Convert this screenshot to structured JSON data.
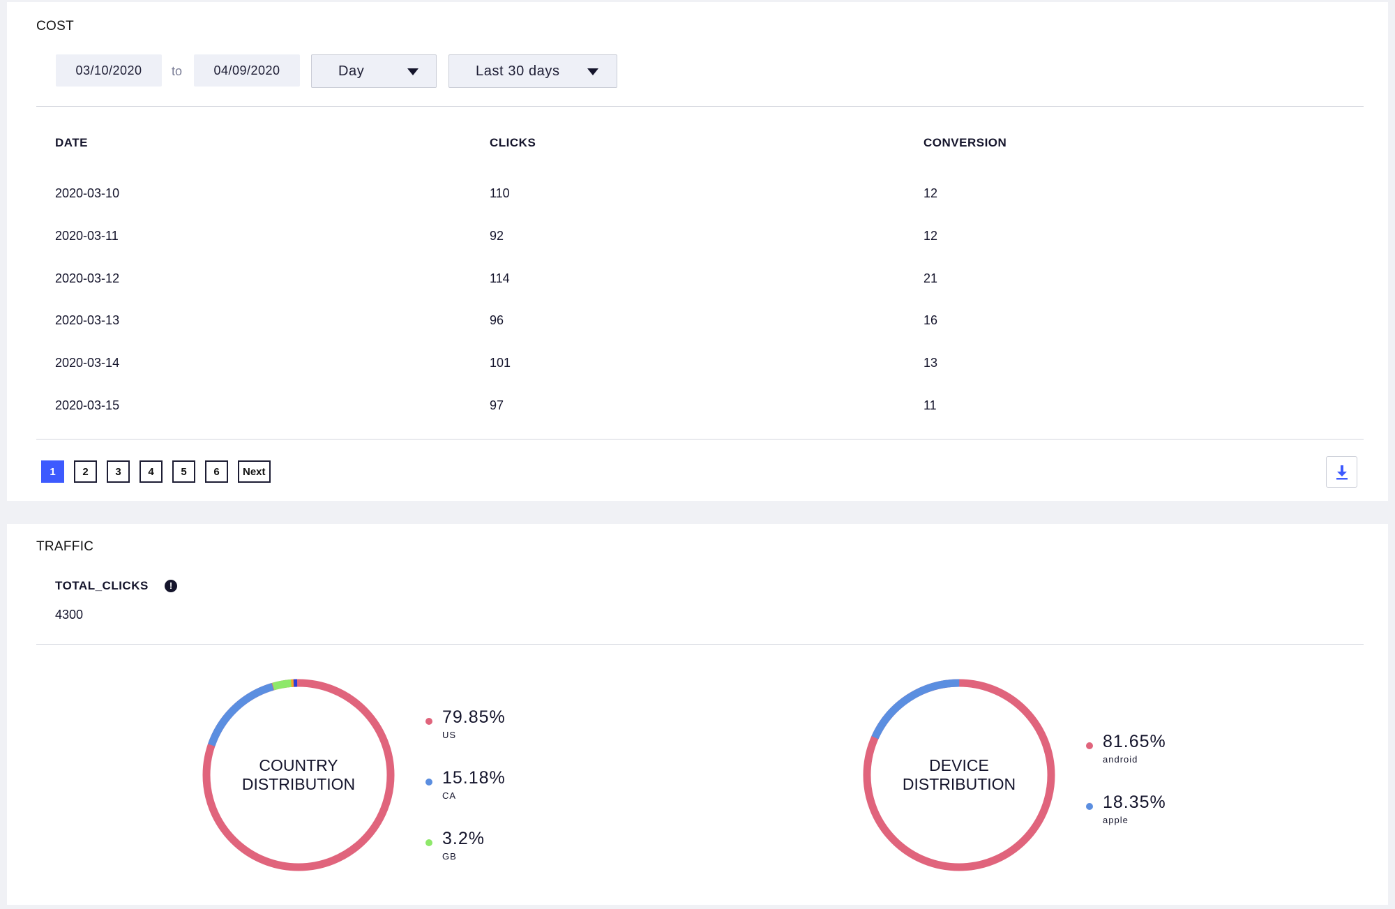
{
  "cost": {
    "title": "COST",
    "date_from": "03/10/2020",
    "to_label": "to",
    "date_to": "04/09/2020",
    "granularity": "Day",
    "range": "Last 30 days",
    "table": {
      "headers": [
        "DATE",
        "CLICKS",
        "CONVERSION"
      ],
      "rows": [
        [
          "2020-03-10",
          "110",
          "12"
        ],
        [
          "2020-03-11",
          "92",
          "12"
        ],
        [
          "2020-03-12",
          "114",
          "21"
        ],
        [
          "2020-03-13",
          "96",
          "16"
        ],
        [
          "2020-03-14",
          "101",
          "13"
        ],
        [
          "2020-03-15",
          "97",
          "11"
        ]
      ]
    },
    "pagination": {
      "pages": [
        "1",
        "2",
        "3",
        "4",
        "5",
        "6"
      ],
      "active_page": "1",
      "next_label": "Next"
    }
  },
  "traffic": {
    "title": "TRAFFIC",
    "metric_label": "TOTAL_CLICKS",
    "metric_info_icon": "info-icon",
    "metric_value": "4300",
    "country": {
      "label_line1": "COUNTRY",
      "label_line2": "DISTRIBUTION",
      "legend": [
        {
          "pct": "79.85%",
          "name": "US",
          "color": "#e0647c"
        },
        {
          "pct": "15.18%",
          "name": "CA",
          "color": "#5b8ee0"
        },
        {
          "pct": "3.2%",
          "name": "GB",
          "color": "#8ee86a"
        }
      ]
    },
    "device": {
      "label_line1": "DEVICE",
      "label_line2": "DISTRIBUTION",
      "legend": [
        {
          "pct": "81.65%",
          "name": "android",
          "color": "#e0647c"
        },
        {
          "pct": "18.35%",
          "name": "apple",
          "color": "#5b8ee0"
        }
      ]
    }
  },
  "colors": {
    "accent": "#3d5afe",
    "pink": "#e0647c",
    "blue": "#5b8ee0",
    "green": "#8ee86a",
    "orange": "#f5a623",
    "navy": "#2b3fd6"
  }
}
